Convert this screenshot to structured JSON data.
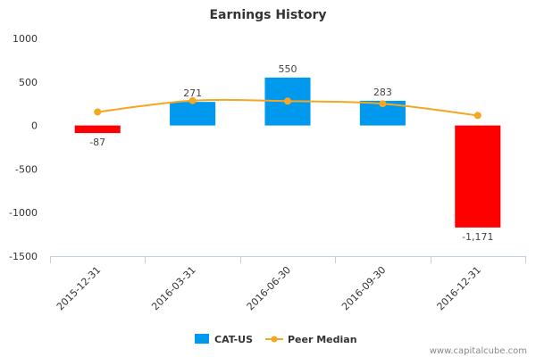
{
  "chart_data": {
    "type": "bar",
    "title": "Earnings History",
    "categories": [
      "2015-12-31",
      "2016-03-31",
      "2016-06-30",
      "2016-09-30",
      "2016-12-31"
    ],
    "series": [
      {
        "name": "CAT-US",
        "type": "bar",
        "values": [
          -87,
          271,
          550,
          283,
          -1171
        ],
        "labels": [
          "-87",
          "271",
          "550",
          "283",
          "-1,171"
        ],
        "color": "#0099ee",
        "negative_color": "#ff0000"
      },
      {
        "name": "Peer Median",
        "type": "line",
        "values": [
          155,
          285,
          280,
          250,
          115
        ],
        "color": "#f5a623"
      }
    ],
    "yticks": [
      1000,
      500,
      0,
      -500,
      -1000,
      -1500
    ],
    "ylim": [
      -1500,
      1000
    ],
    "grid": false,
    "legend": "bottom-center"
  },
  "credit": "www.capitalcube.com"
}
